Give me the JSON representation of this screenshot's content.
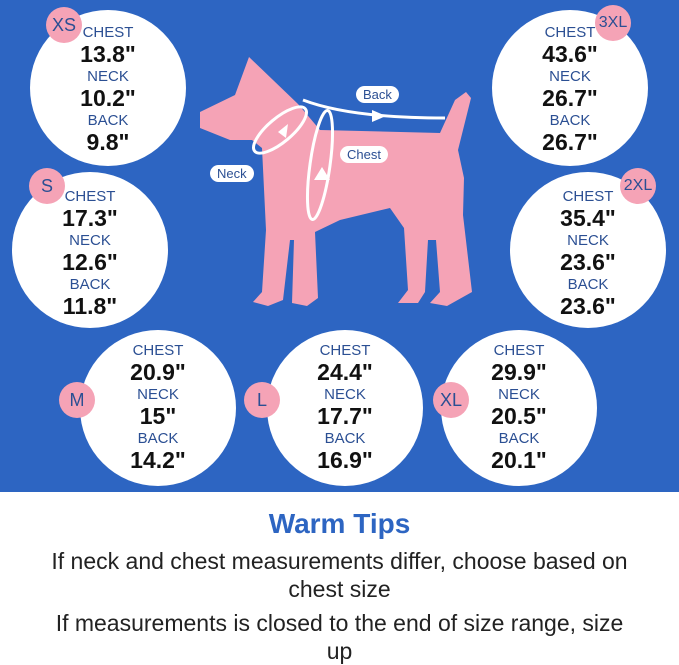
{
  "labels": {
    "chest": "CHEST",
    "neck": "NECK",
    "back": "BACK"
  },
  "sizes": [
    {
      "size": "XS",
      "chest": "13.8\"",
      "neck": "10.2\"",
      "back": "9.8\""
    },
    {
      "size": "S",
      "chest": "17.3\"",
      "neck": "12.6\"",
      "back": "11.8\""
    },
    {
      "size": "M",
      "chest": "20.9\"",
      "neck": "15\"",
      "back": "14.2\""
    },
    {
      "size": "L",
      "chest": "24.4\"",
      "neck": "17.7\"",
      "back": "16.9\""
    },
    {
      "size": "XL",
      "chest": "29.9\"",
      "neck": "20.5\"",
      "back": "20.1\""
    },
    {
      "size": "2XL",
      "chest": "35.4\"",
      "neck": "23.6\"",
      "back": "23.6\""
    },
    {
      "size": "3XL",
      "chest": "43.6\"",
      "neck": "26.7\"",
      "back": "26.7\""
    }
  ],
  "diagram": {
    "back": "Back",
    "chest": "Chest",
    "neck": "Neck"
  },
  "tips": {
    "title": "Warm Tips",
    "line1": "If neck and chest measurements differ, choose based on chest size",
    "line2": "If measurements is closed to the end of size range, size up"
  },
  "colors": {
    "background": "#2d65c2",
    "dog": "#f5a3b6",
    "badge": "#f5a3b6"
  }
}
